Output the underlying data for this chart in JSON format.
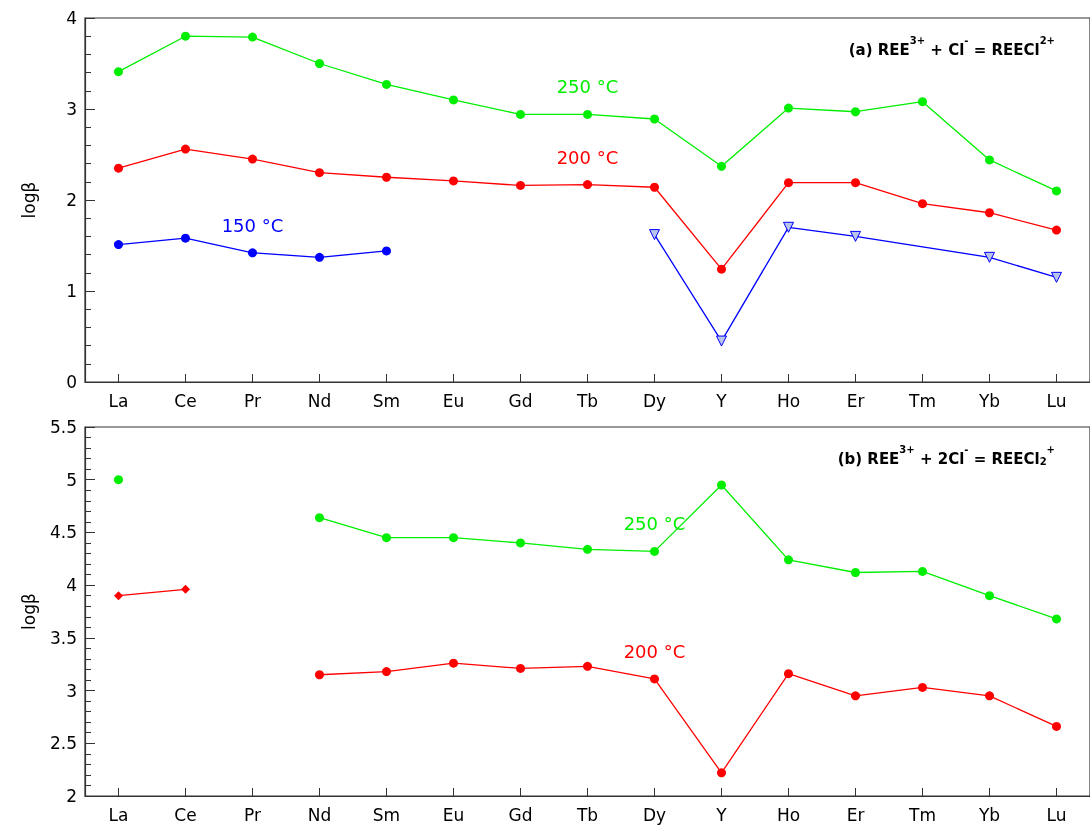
{
  "chart_data": [
    {
      "type": "line",
      "title": "(a) REE$^{3+}$ + Cl$^{-}$ = REECl$^{2+}$",
      "ylabel": "logβ",
      "marker": "circle",
      "categories": [
        "La",
        "Ce",
        "Pr",
        "Nd",
        "Sm",
        "Eu",
        "Gd",
        "Tb",
        "Dy",
        "Y",
        "Ho",
        "Er",
        "Tm",
        "Yb",
        "Lu"
      ],
      "ylim": [
        0,
        4
      ],
      "yticks": [
        0,
        1,
        2,
        3,
        4
      ],
      "series": [
        {
          "name": "250 °C",
          "color": "#00ee00",
          "values": [
            3.41,
            3.8,
            3.79,
            3.5,
            3.27,
            3.1,
            2.94,
            2.94,
            2.89,
            2.37,
            3.01,
            2.97,
            3.08,
            2.44,
            2.1
          ]
        },
        {
          "name": "200 °C",
          "color": "#ff0000",
          "values": [
            2.35,
            2.56,
            2.45,
            2.3,
            2.25,
            2.21,
            2.16,
            2.17,
            2.14,
            1.24,
            2.19,
            2.19,
            1.96,
            1.86,
            1.67
          ]
        },
        {
          "name": "150 °C",
          "color": "#0000ff",
          "values": [
            1.51,
            1.58,
            1.42,
            1.37,
            1.44,
            null,
            null,
            null,
            null,
            null,
            null,
            null,
            null,
            null,
            null
          ]
        },
        {
          "color": "#0000ff",
          "marker": "triangle",
          "values": [
            null,
            null,
            null,
            null,
            null,
            null,
            null,
            null,
            1.62,
            0.45,
            1.7,
            1.6,
            null,
            1.37,
            1.15
          ]
        }
      ]
    },
    {
      "type": "line",
      "title": "(b) REE$^{3+}$ + 2Cl$^{-}$ = REECl$_{2}$$^{+}$",
      "ylabel": "logβ",
      "marker": "circle",
      "categories": [
        "La",
        "Ce",
        "Pr",
        "Nd",
        "Sm",
        "Eu",
        "Gd",
        "Tb",
        "Dy",
        "Y",
        "Ho",
        "Er",
        "Tm",
        "Yb",
        "Lu"
      ],
      "ylim": [
        2,
        5.5
      ],
      "yticks": [
        2,
        2.5,
        3,
        3.5,
        4,
        4.5,
        5,
        5.5
      ],
      "series": [
        {
          "color": "#00ee00",
          "values": [
            5.0,
            null,
            null,
            null,
            null,
            null,
            null,
            null,
            null,
            null,
            null,
            null,
            null,
            null,
            null
          ]
        },
        {
          "name": "250 °C",
          "color": "#00ee00",
          "values": [
            null,
            null,
            null,
            4.64,
            4.45,
            4.45,
            4.4,
            4.34,
            4.32,
            4.95,
            4.24,
            4.12,
            4.13,
            3.9,
            3.68
          ]
        },
        {
          "color": "#ff0000",
          "marker": "diamond",
          "values": [
            3.9,
            3.96,
            null,
            null,
            null,
            null,
            null,
            null,
            null,
            null,
            null,
            null,
            null,
            null,
            null
          ]
        },
        {
          "name": "200 °C",
          "color": "#ff0000",
          "values": [
            null,
            null,
            null,
            3.15,
            3.18,
            3.26,
            3.21,
            3.23,
            3.11,
            2.22,
            3.16,
            2.95,
            3.03,
            2.95,
            2.66
          ]
        }
      ]
    }
  ]
}
